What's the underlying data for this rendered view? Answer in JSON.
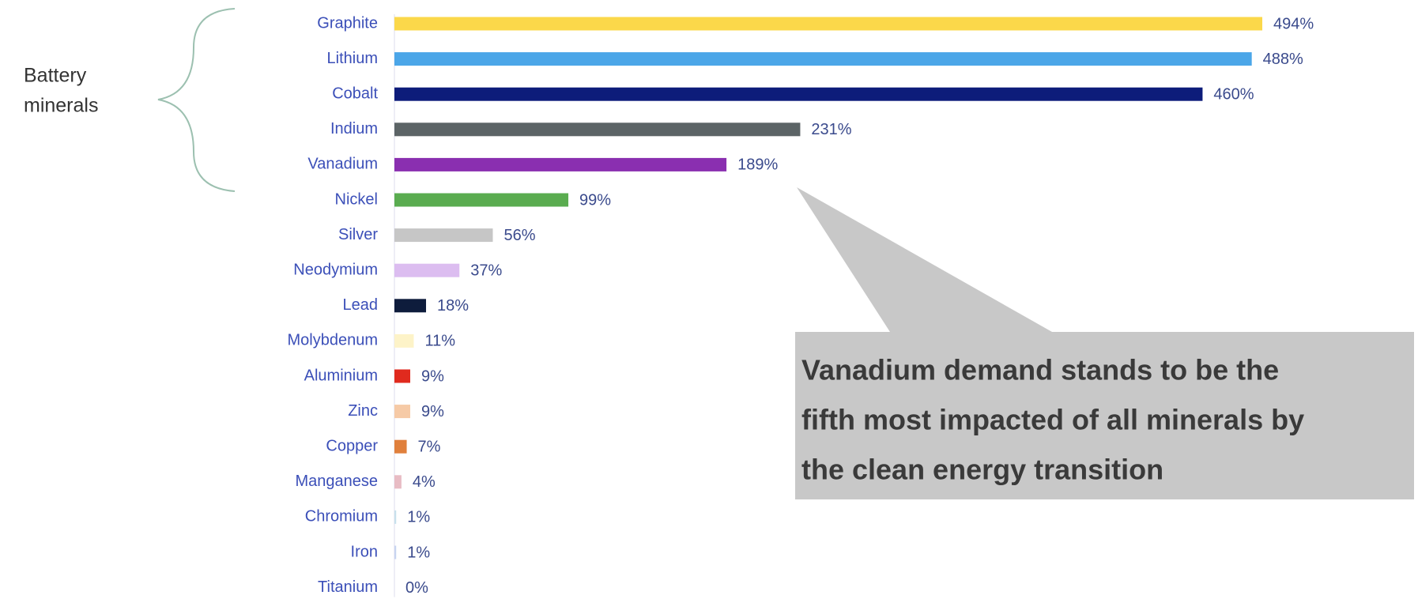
{
  "chart_data": {
    "type": "bar",
    "orientation": "horizontal",
    "categories": [
      "Graphite",
      "Lithium",
      "Cobalt",
      "Indium",
      "Vanadium",
      "Nickel",
      "Silver",
      "Neodymium",
      "Lead",
      "Molybdenum",
      "Aluminium",
      "Zinc",
      "Copper",
      "Manganese",
      "Chromium",
      "Iron",
      "Titanium"
    ],
    "values": [
      494,
      488,
      460,
      231,
      189,
      99,
      56,
      37,
      18,
      11,
      9,
      9,
      7,
      4,
      1,
      1,
      0
    ],
    "value_labels": [
      "494%",
      "488%",
      "460%",
      "231%",
      "189%",
      "99%",
      "56%",
      "37%",
      "18%",
      "11%",
      "9%",
      "9%",
      "7%",
      "4%",
      "1%",
      "1%",
      "0%"
    ],
    "colors": [
      "#fbd84a",
      "#4ba6e8",
      "#0d1c7a",
      "#5c6466",
      "#8a2fb0",
      "#5aac50",
      "#c6c6c6",
      "#dcbdf0",
      "#0e1c3c",
      "#fdf3c8",
      "#e02a1e",
      "#f6caa6",
      "#e0803c",
      "#e8bcc4",
      "#c8e0ec",
      "#c8d4f0",
      "#d8d8e8"
    ],
    "group_label": [
      "Battery",
      "minerals"
    ],
    "annotation": [
      "Vanadium demand stands to be the",
      "fifth most impacted of all minerals by",
      "the clean energy transition"
    ]
  }
}
